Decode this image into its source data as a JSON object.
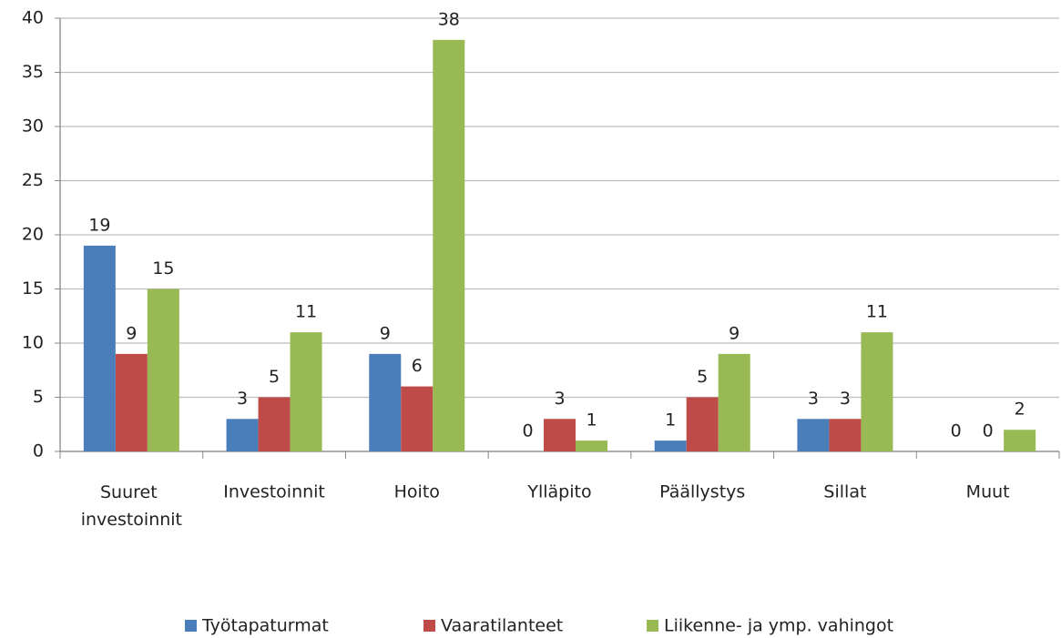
{
  "chart_data": {
    "type": "bar",
    "categories": [
      "Suuret investoinnit",
      "Investoinnit",
      "Hoito",
      "Ylläpito",
      "Päällystys",
      "Sillat",
      "Muut"
    ],
    "series": [
      {
        "name": "Työtapaturmat",
        "color": "#4a7ebb",
        "values": [
          19,
          3,
          9,
          0,
          1,
          3,
          0
        ]
      },
      {
        "name": "Vaaratilanteet",
        "color": "#be4b48",
        "values": [
          9,
          5,
          6,
          3,
          5,
          3,
          0
        ]
      },
      {
        "name": "Liikenne- ja ymp. vahingot",
        "color": "#98b954",
        "values": [
          15,
          11,
          38,
          1,
          9,
          11,
          2
        ]
      }
    ],
    "ylim": [
      0,
      40
    ],
    "yticks": [
      0,
      5,
      10,
      15,
      20,
      25,
      30,
      35,
      40
    ],
    "grid": true,
    "legend": "bottom"
  }
}
